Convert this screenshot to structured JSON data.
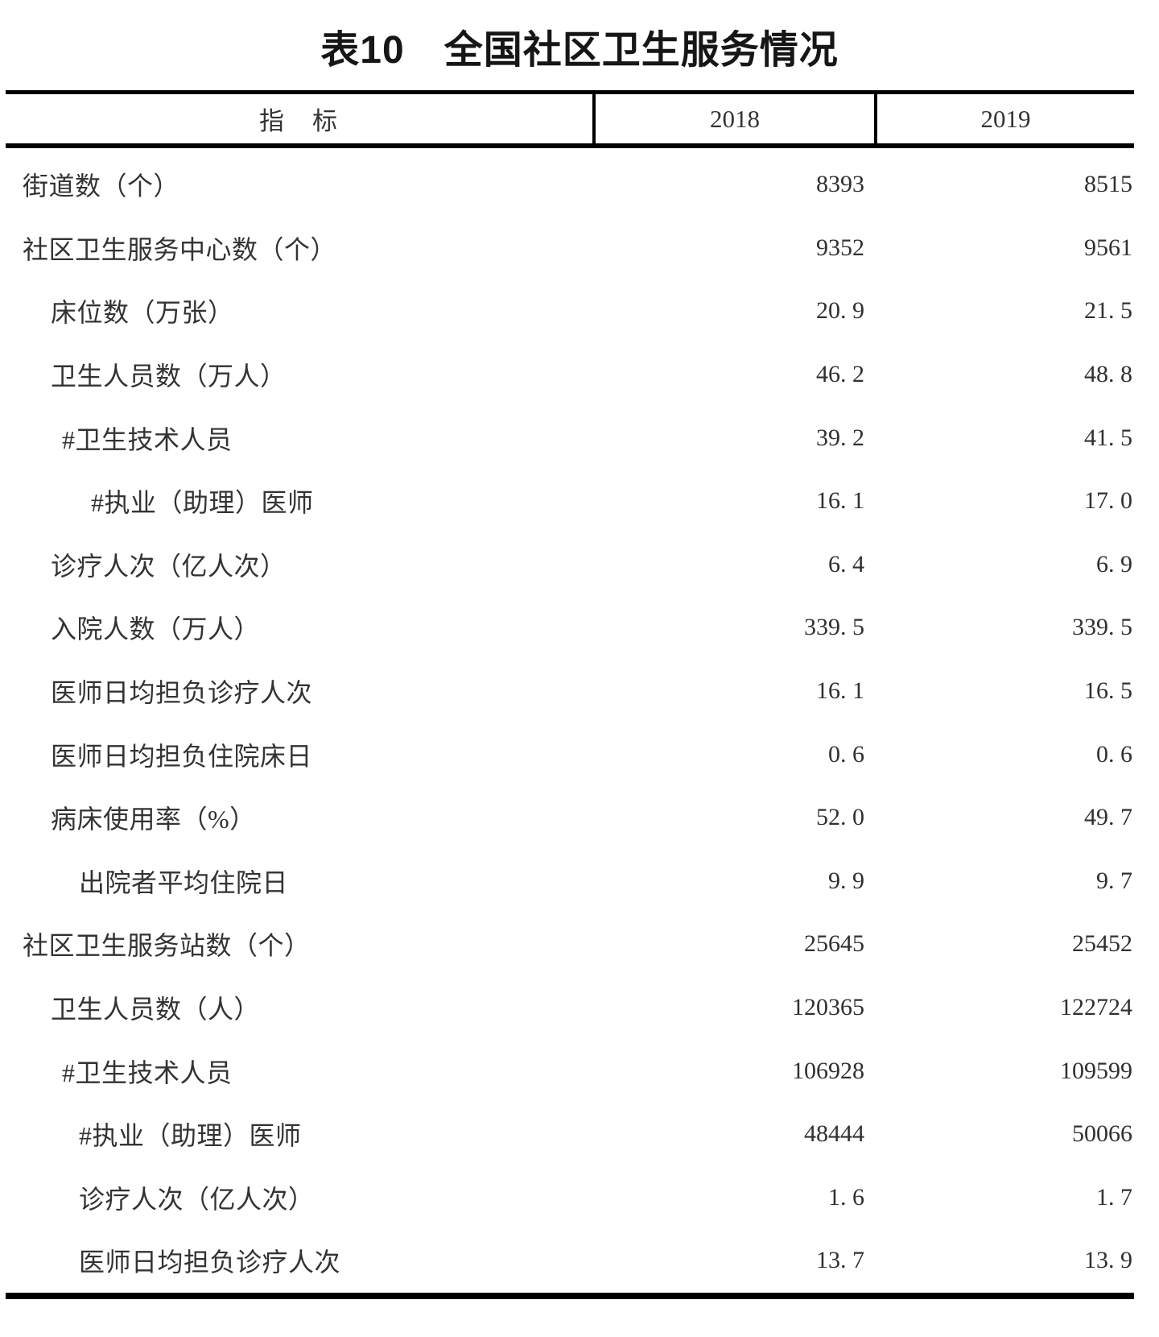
{
  "title": "表10　全国社区卫生服务情况",
  "table": {
    "header": {
      "indicator": "指　标",
      "y2018": "2018",
      "y2019": "2019"
    },
    "rows": [
      {
        "label": "街道数（个）",
        "indent": 0,
        "v2018": "8393",
        "v2019": "8515"
      },
      {
        "label": "社区卫生服务中心数（个）",
        "indent": 0,
        "v2018": "9352",
        "v2019": "9561"
      },
      {
        "label": "床位数（万张）",
        "indent": 1,
        "v2018": "20. 9",
        "v2019": "21. 5"
      },
      {
        "label": "卫生人员数（万人）",
        "indent": 1,
        "v2018": "46. 2",
        "v2019": "48. 8"
      },
      {
        "label": "#卫生技术人员",
        "indent": 2,
        "v2018": "39. 2",
        "v2019": "41. 5"
      },
      {
        "label": "#执业（助理）医师",
        "indent": 4,
        "v2018": "16. 1",
        "v2019": "17. 0"
      },
      {
        "label": "诊疗人次（亿人次）",
        "indent": 1,
        "v2018": "6. 4",
        "v2019": "6. 9"
      },
      {
        "label": "入院人数（万人）",
        "indent": 1,
        "v2018": "339. 5",
        "v2019": "339. 5"
      },
      {
        "label": "医师日均担负诊疗人次",
        "indent": 1,
        "v2018": "16. 1",
        "v2019": "16. 5"
      },
      {
        "label": "医师日均担负住院床日",
        "indent": 1,
        "v2018": "0. 6",
        "v2019": "0. 6"
      },
      {
        "label": "病床使用率（%）",
        "indent": 1,
        "v2018": "52. 0",
        "v2019": "49. 7"
      },
      {
        "label": "出院者平均住院日",
        "indent": 3,
        "v2018": "9. 9",
        "v2019": "9. 7"
      },
      {
        "label": "社区卫生服务站数（个）",
        "indent": 0,
        "v2018": "25645",
        "v2019": "25452"
      },
      {
        "label": "卫生人员数（人）",
        "indent": 1,
        "v2018": "120365",
        "v2019": "122724"
      },
      {
        "label": "#卫生技术人员",
        "indent": 2,
        "v2018": "106928",
        "v2019": "109599"
      },
      {
        "label": "#执业（助理）医师",
        "indent": 3,
        "v2018": "48444",
        "v2019": "50066"
      },
      {
        "label": "诊疗人次（亿人次）",
        "indent": 3,
        "v2018": "1. 6",
        "v2019": "1. 7"
      },
      {
        "label": "医师日均担负诊疗人次",
        "indent": 3,
        "v2018": "13. 7",
        "v2019": "13. 9"
      }
    ],
    "styles": {
      "border_color": "#000000",
      "text_color": "#333333",
      "background": "#ffffff"
    }
  }
}
